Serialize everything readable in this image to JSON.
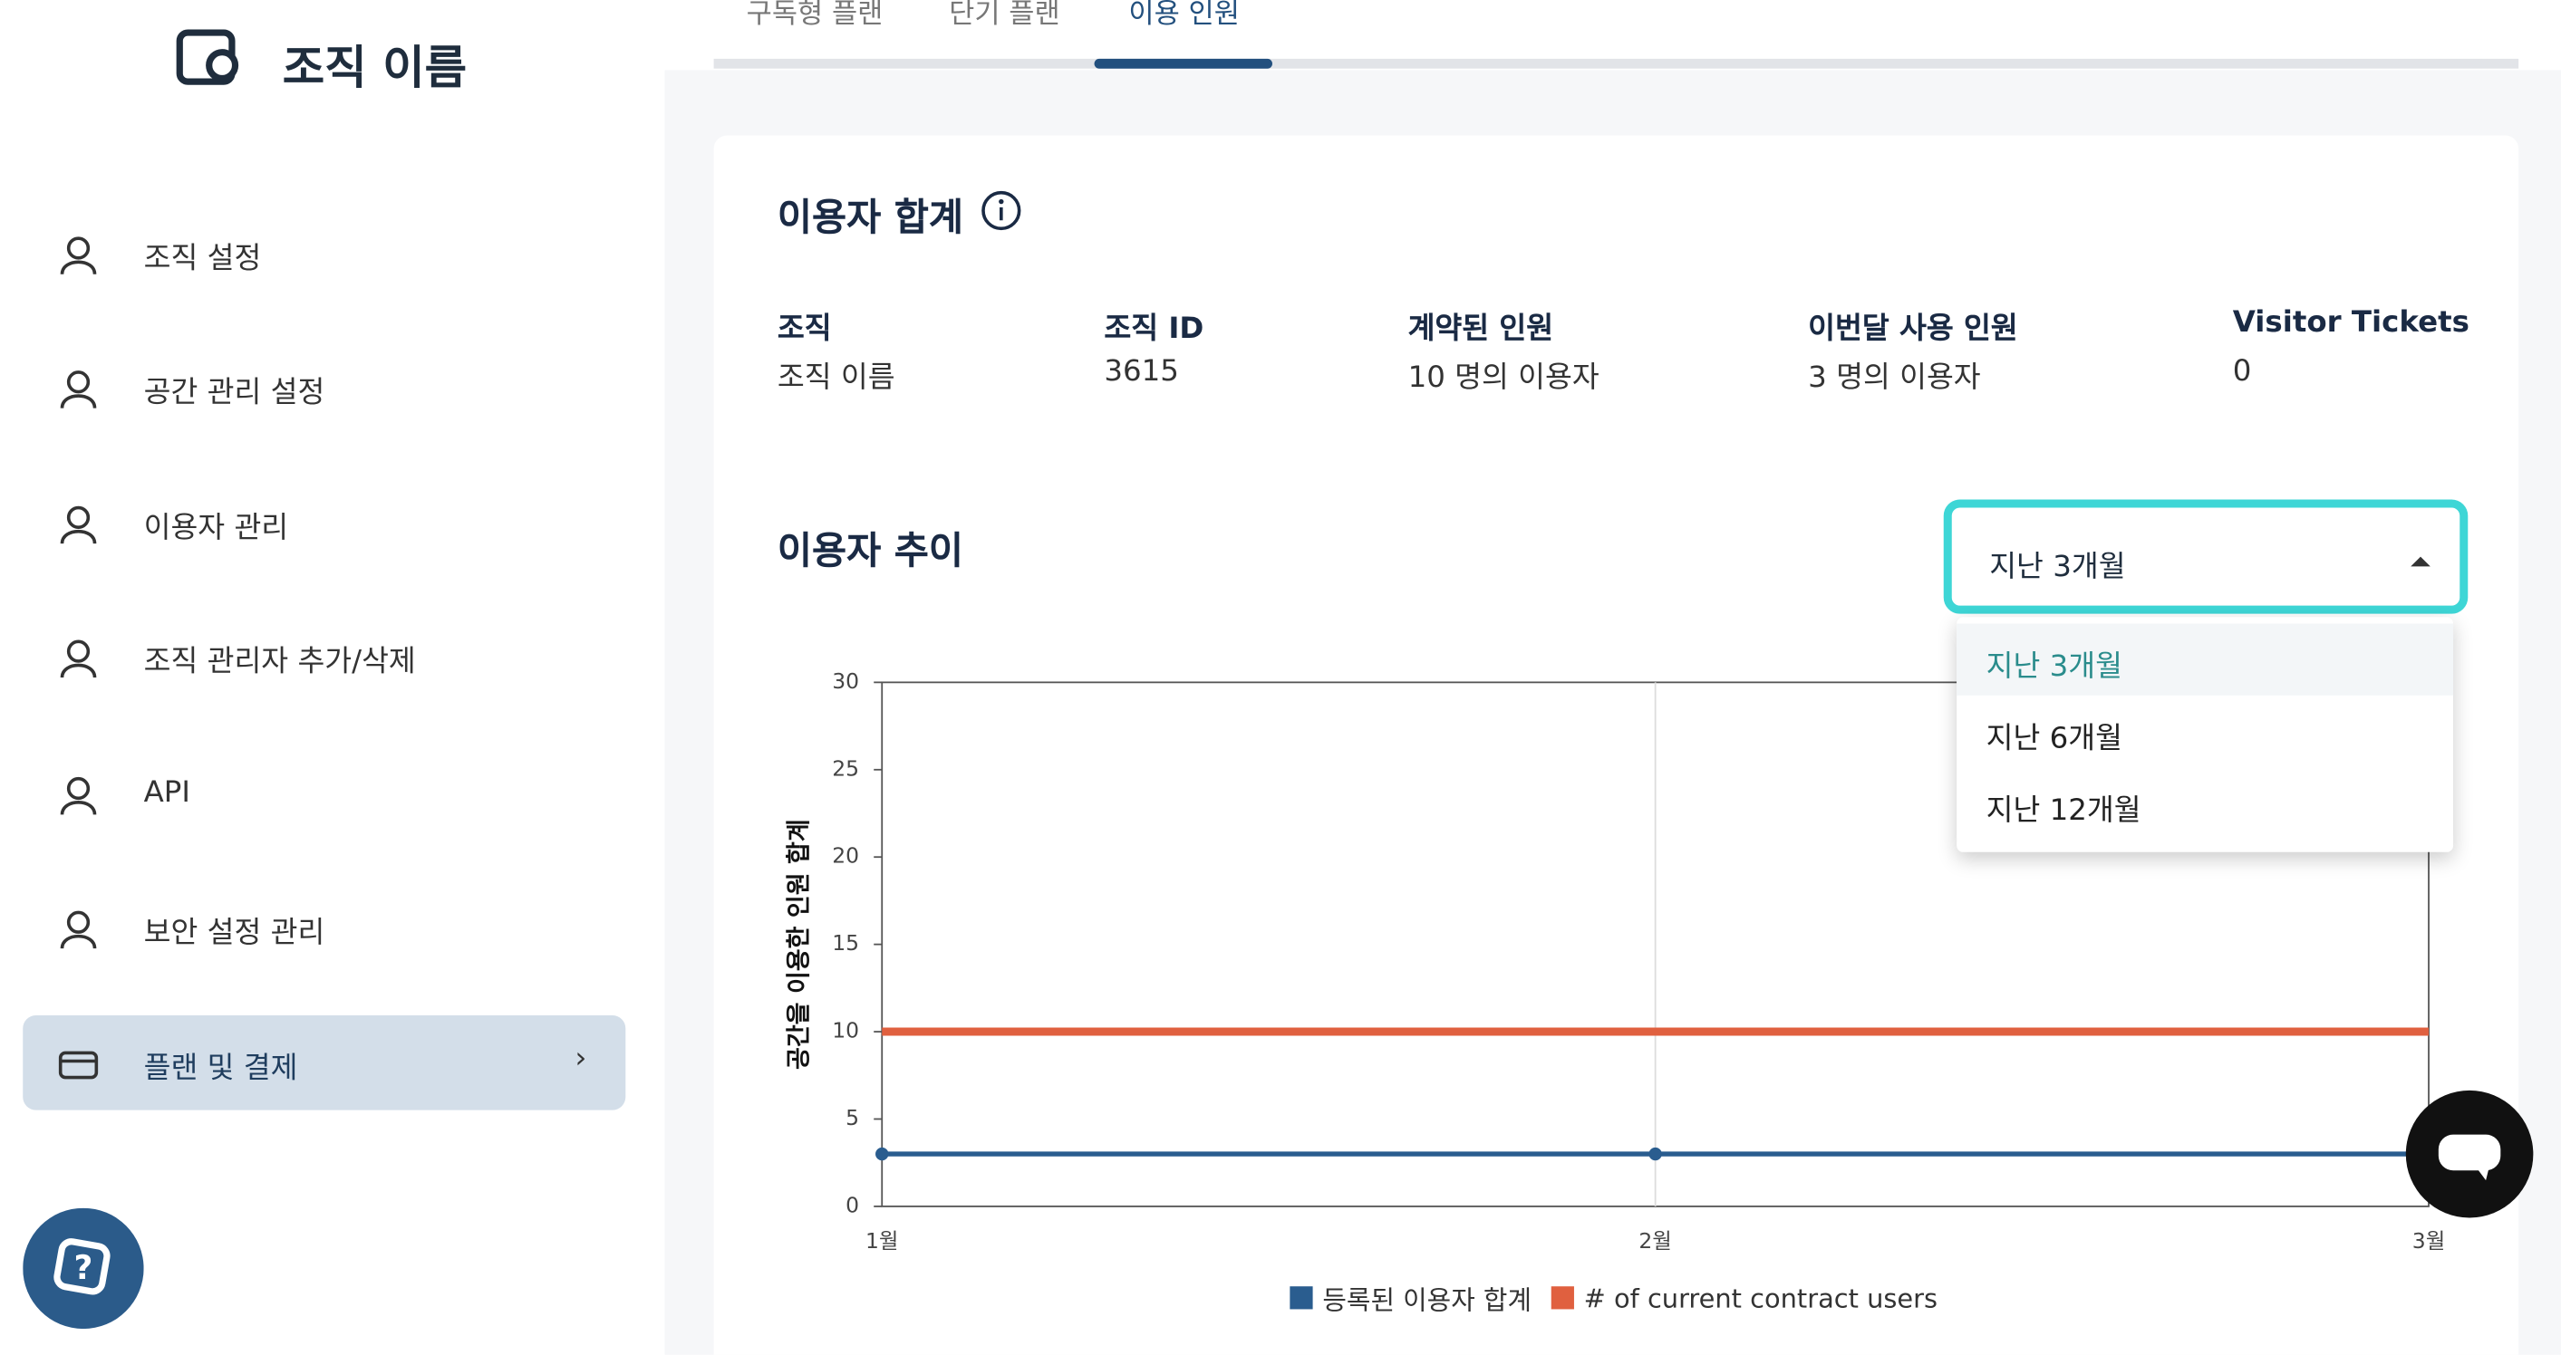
{
  "sidebar": {
    "org_name": "조직 이름",
    "menu": [
      "조직 설정",
      "공간 관리 설정",
      "이용자 관리",
      "조직 관리자 추가/삭제",
      "API",
      "보안 설정 관리",
      "플랜 및 결제"
    ]
  },
  "tabs": [
    "구독형 플랜",
    "단기 플랜",
    "이용 인원"
  ],
  "summary": {
    "title": "이용자 합계",
    "headers": [
      "조직",
      "조직 ID",
      "계약된 인원",
      "이번달 사용 인원",
      "Visitor Tickets"
    ],
    "values": [
      "조직 이름",
      "3615",
      "10 명의 이용자",
      "3 명의 이용자",
      "0"
    ]
  },
  "trend": {
    "title": "이용자 추이",
    "dropdown": {
      "selected": "지난 3개월",
      "options": [
        "지난 3개월",
        "지난 6개월",
        "지난 12개월"
      ]
    }
  },
  "chart_data": {
    "type": "line",
    "y_label": "공간을 이용한 인원 합계",
    "categories": [
      "1월",
      "2월",
      "3월"
    ],
    "series": [
      {
        "name": "등록된 이용자 합계",
        "color": "#2a5d8f",
        "values": [
          3,
          3,
          3
        ]
      },
      {
        "name": "# of current contract users",
        "color": "#e0603f",
        "values": [
          10,
          10,
          10
        ]
      }
    ],
    "ylim": [
      0,
      30
    ],
    "yticks": [
      0,
      5,
      10,
      15,
      20,
      25,
      30
    ],
    "grid": true
  }
}
